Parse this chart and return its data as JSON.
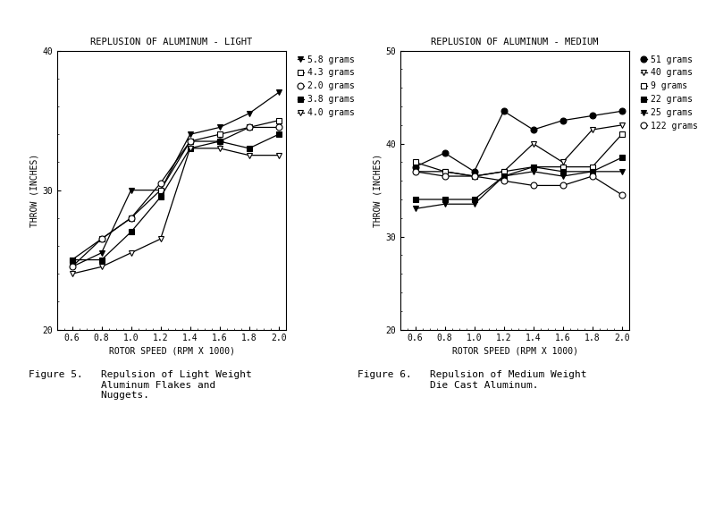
{
  "left_title": "REPLUSION OF ALUMINUM - LIGHT",
  "right_title": "REPLUSION OF ALUMINUM - MEDIUM",
  "xlabel": "ROTOR SPEED (RPM X 1000)",
  "right_xlabel": "ROTOR SPEED (RPM X 1000)",
  "ylabel": "THROW (INCHES)",
  "x": [
    0.6,
    0.8,
    1.0,
    1.2,
    1.4,
    1.6,
    1.8,
    2.0
  ],
  "left_ylim": [
    20,
    40
  ],
  "right_ylim": [
    20,
    50
  ],
  "left_yticks": [
    20,
    30,
    40
  ],
  "right_yticks": [
    20,
    30,
    40,
    50
  ],
  "xticks": [
    0.6,
    0.8,
    1.0,
    1.2,
    1.4,
    1.6,
    1.8,
    2.0
  ],
  "left_series": [
    {
      "label": "5.8 grams",
      "y": [
        24.5,
        25.5,
        30.0,
        30.0,
        34.0,
        34.5,
        35.5,
        37.0
      ],
      "marker": "v",
      "filled": true
    },
    {
      "label": "4.3 grams",
      "y": [
        25.0,
        26.5,
        28.0,
        30.0,
        33.5,
        34.0,
        34.5,
        35.0
      ],
      "marker": "s",
      "filled": false
    },
    {
      "label": "2.0 grams",
      "y": [
        24.5,
        26.5,
        28.0,
        30.5,
        33.5,
        33.5,
        34.5,
        34.5
      ],
      "marker": "o",
      "filled": false
    },
    {
      "label": "3.8 grams",
      "y": [
        25.0,
        25.0,
        27.0,
        29.5,
        33.0,
        33.5,
        33.0,
        34.0
      ],
      "marker": "s",
      "filled": true
    },
    {
      "label": "4.0 grams",
      "y": [
        24.0,
        24.5,
        25.5,
        26.5,
        33.0,
        33.0,
        32.5,
        32.5
      ],
      "marker": "v",
      "filled": false
    }
  ],
  "right_series": [
    {
      "label": "51 grams",
      "y": [
        37.5,
        39.0,
        37.0,
        43.5,
        41.5,
        42.5,
        43.0,
        43.5
      ],
      "marker": "o",
      "filled": true
    },
    {
      "label": "40 grams",
      "y": [
        37.0,
        37.0,
        36.5,
        37.0,
        40.0,
        38.0,
        41.5,
        42.0
      ],
      "marker": "v",
      "filled": false
    },
    {
      "label": "9 grams",
      "y": [
        38.0,
        37.0,
        36.5,
        37.0,
        37.5,
        37.5,
        37.5,
        41.0
      ],
      "marker": "s",
      "filled": false
    },
    {
      "label": "22 grams",
      "y": [
        34.0,
        34.0,
        34.0,
        36.5,
        37.5,
        37.0,
        37.0,
        38.5
      ],
      "marker": "s",
      "filled": true
    },
    {
      "label": "25 grams",
      "y": [
        33.0,
        33.5,
        33.5,
        36.5,
        37.0,
        36.5,
        37.0,
        37.0
      ],
      "marker": "v",
      "filled": true
    },
    {
      "label": "122 grams",
      "y": [
        37.0,
        36.5,
        36.5,
        36.0,
        35.5,
        35.5,
        36.5,
        34.5
      ],
      "marker": "o",
      "filled": false
    }
  ],
  "figure5_caption": "Figure 5.   Repulsion of Light Weight\n            Aluminum Flakes and\n            Nuggets.",
  "figure6_caption": "Figure 6.   Repulsion of Medium Weight\n            Die Cast Aluminum.",
  "bg_color": "#ffffff"
}
